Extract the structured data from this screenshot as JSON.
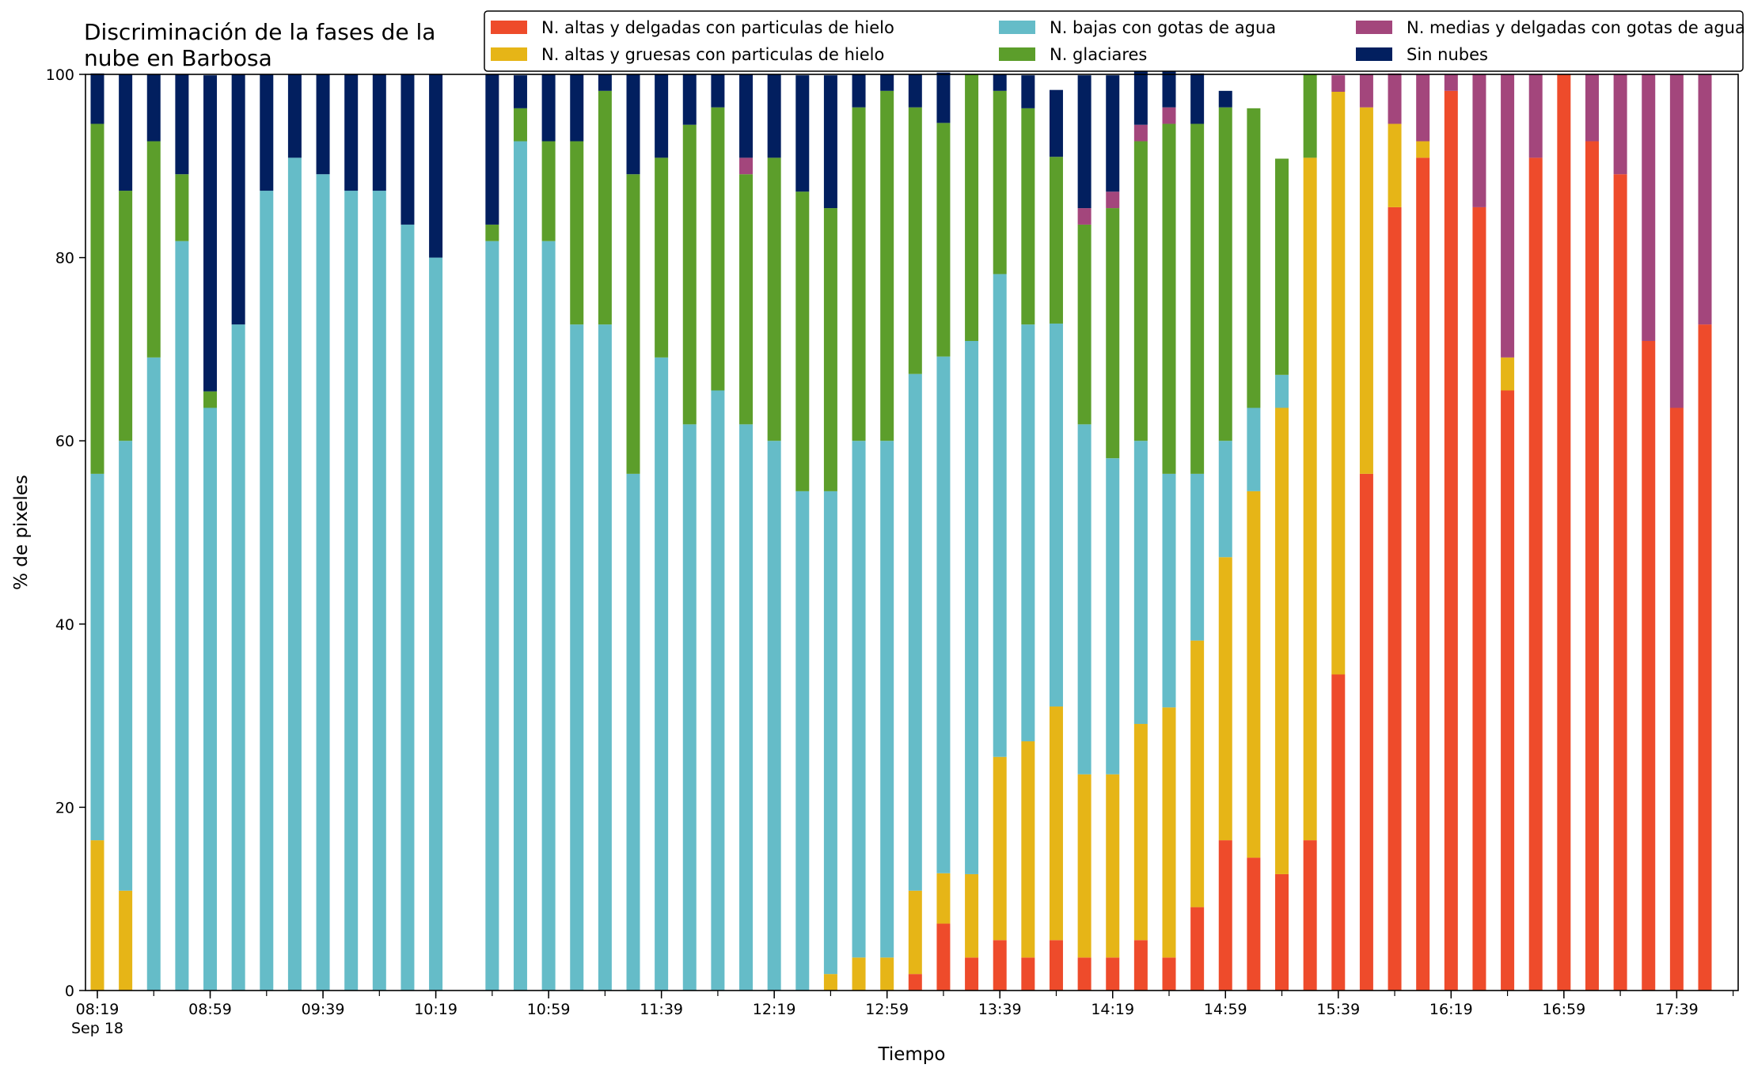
{
  "chart_data": {
    "type": "bar",
    "stacked": true,
    "title": "Discriminación de la fases de la\nnube en Barbosa",
    "xlabel": "Tiempo",
    "ylabel": "% de pixeles",
    "ylim": [
      0,
      100
    ],
    "yticks": [
      0,
      20,
      40,
      60,
      80,
      100
    ],
    "grid": false,
    "legend_position": "top-right",
    "x_tick_labels": [
      {
        "label": "08:19",
        "sublabel": "Sep 18",
        "index": 0
      },
      {
        "label": "08:59",
        "index": 4
      },
      {
        "label": "09:39",
        "index": 8
      },
      {
        "label": "10:19",
        "index": 12
      },
      {
        "label": "10:59",
        "index": 16
      },
      {
        "label": "11:39",
        "index": 20
      },
      {
        "label": "12:19",
        "index": 24
      },
      {
        "label": "12:59",
        "index": 28
      },
      {
        "label": "13:39",
        "index": 32
      },
      {
        "label": "14:19",
        "index": 36
      },
      {
        "label": "14:59",
        "index": 40
      },
      {
        "label": "15:39",
        "index": 44
      },
      {
        "label": "16:19",
        "index": 48
      },
      {
        "label": "16:59",
        "index": 52
      },
      {
        "label": "17:39",
        "index": 56
      }
    ],
    "categories": [
      "08:19",
      "08:29",
      "08:39",
      "08:49",
      "08:59",
      "09:09",
      "09:19",
      "09:29",
      "09:39",
      "09:49",
      "09:59",
      "10:09",
      "10:19",
      "10:29",
      "10:39",
      "10:49",
      "10:59",
      "11:09",
      "11:19",
      "11:29",
      "11:39",
      "11:49",
      "11:59",
      "12:09",
      "12:19",
      "12:29",
      "12:39",
      "12:49",
      "12:59",
      "13:09",
      "13:19",
      "13:29",
      "13:39",
      "13:49",
      "13:59",
      "14:09",
      "14:19",
      "14:29",
      "14:39",
      "14:49",
      "14:59",
      "15:09",
      "15:19",
      "15:29",
      "15:39",
      "15:49",
      "15:59",
      "16:09",
      "16:19",
      "16:29",
      "16:39",
      "16:49",
      "16:59",
      "17:09",
      "17:19",
      "17:29",
      "17:39",
      "17:49"
    ],
    "series": [
      {
        "name": "N. altas y delgadas con particulas de hielo",
        "color": "#ee4b2b",
        "values": [
          0,
          0,
          0,
          0,
          0,
          0,
          0,
          0,
          0,
          0,
          0,
          0,
          0,
          null,
          0,
          0,
          0,
          0,
          0,
          0,
          0,
          0,
          0,
          0,
          0,
          0,
          0,
          0,
          0,
          1.8,
          7.3,
          3.6,
          5.5,
          3.6,
          5.5,
          3.6,
          3.6,
          5.5,
          3.6,
          9.1,
          16.4,
          14.5,
          12.7,
          16.4,
          34.5,
          56.4,
          85.5,
          90.9,
          98.2,
          85.5,
          65.5,
          90.9,
          100,
          92.7,
          89.1,
          70.9,
          63.6,
          72.7
        ]
      },
      {
        "name": "N. altas y gruesas con particulas de hielo",
        "color": "#e6b517",
        "values": [
          16.4,
          10.9,
          0,
          0,
          0,
          0,
          0,
          0,
          0,
          0,
          0,
          0,
          0,
          null,
          0,
          0,
          0,
          0,
          0,
          0,
          0,
          0,
          0,
          0,
          0,
          0,
          1.8,
          3.6,
          3.6,
          9.1,
          5.5,
          9.1,
          20,
          23.6,
          25.5,
          20,
          20,
          23.6,
          27.3,
          29.1,
          30.9,
          40,
          50.9,
          74.5,
          63.6,
          40,
          9.1,
          1.8,
          0,
          0,
          3.6,
          0,
          0,
          0,
          0,
          0,
          0,
          0
        ]
      },
      {
        "name": "N. bajas con gotas de agua",
        "color": "#65bcc8",
        "values": [
          40,
          49.1,
          69.1,
          81.8,
          63.6,
          72.7,
          87.3,
          90.9,
          89.1,
          87.3,
          87.3,
          83.6,
          80,
          null,
          81.8,
          92.7,
          81.8,
          72.7,
          72.7,
          56.4,
          69.1,
          61.8,
          65.5,
          61.8,
          60,
          54.5,
          52.7,
          56.4,
          56.4,
          56.4,
          56.4,
          58.2,
          52.7,
          45.5,
          41.8,
          38.2,
          34.5,
          30.9,
          25.5,
          18.2,
          12.7,
          9.1,
          3.6,
          0,
          0,
          0,
          0,
          0,
          0,
          0,
          0,
          0,
          0,
          0,
          0,
          0,
          0,
          0
        ]
      },
      {
        "name": "N. glaciares",
        "color": "#5c9e2b",
        "values": [
          38.2,
          27.3,
          23.6,
          7.3,
          1.8,
          0,
          0,
          0,
          0,
          0,
          0,
          0,
          0,
          null,
          1.8,
          3.6,
          10.9,
          20,
          25.5,
          32.7,
          21.8,
          32.7,
          30.9,
          27.3,
          30.9,
          32.7,
          30.9,
          36.4,
          38.2,
          29.1,
          25.5,
          29.1,
          20,
          23.6,
          18.2,
          21.8,
          27.3,
          32.7,
          38.2,
          38.2,
          36.4,
          32.7,
          23.6,
          9.1,
          0,
          0,
          0,
          0,
          0,
          0,
          0,
          0,
          0,
          0,
          0,
          0,
          0,
          0
        ]
      },
      {
        "name": "N. medias y delgadas con gotas de agua",
        "color": "#a3467c",
        "values": [
          0,
          0,
          0,
          0,
          0,
          0,
          0,
          0,
          0,
          0,
          0,
          0,
          0,
          null,
          0,
          0,
          0,
          0,
          0,
          0,
          0,
          0,
          0,
          1.8,
          0,
          0,
          0,
          0,
          0,
          0,
          0,
          0,
          0,
          0,
          0,
          1.8,
          1.8,
          1.8,
          1.8,
          0,
          0,
          0,
          0,
          0,
          1.8,
          3.6,
          5.5,
          7.3,
          1.8,
          14.5,
          30.9,
          9.1,
          0,
          7.3,
          10.9,
          29.1,
          36.4,
          27.3
        ]
      },
      {
        "name": "Sin nubes",
        "color": "#021f5f",
        "values": [
          5.5,
          12.7,
          7.3,
          10.9,
          34.5,
          27.3,
          12.7,
          9.1,
          10.9,
          12.7,
          12.7,
          16.4,
          20,
          null,
          16.4,
          3.6,
          7.3,
          7.3,
          1.8,
          10.9,
          9.1,
          5.5,
          3.6,
          9.1,
          9.1,
          12.7,
          14.5,
          3.6,
          1.8,
          3.6,
          5.5,
          0,
          1.8,
          3.6,
          7.3,
          14.5,
          12.7,
          7.3,
          7.3,
          5.5,
          1.8,
          0,
          0,
          0,
          0,
          0,
          0,
          0,
          0,
          0,
          0,
          0,
          0,
          0,
          0,
          0,
          0,
          0
        ]
      }
    ]
  }
}
